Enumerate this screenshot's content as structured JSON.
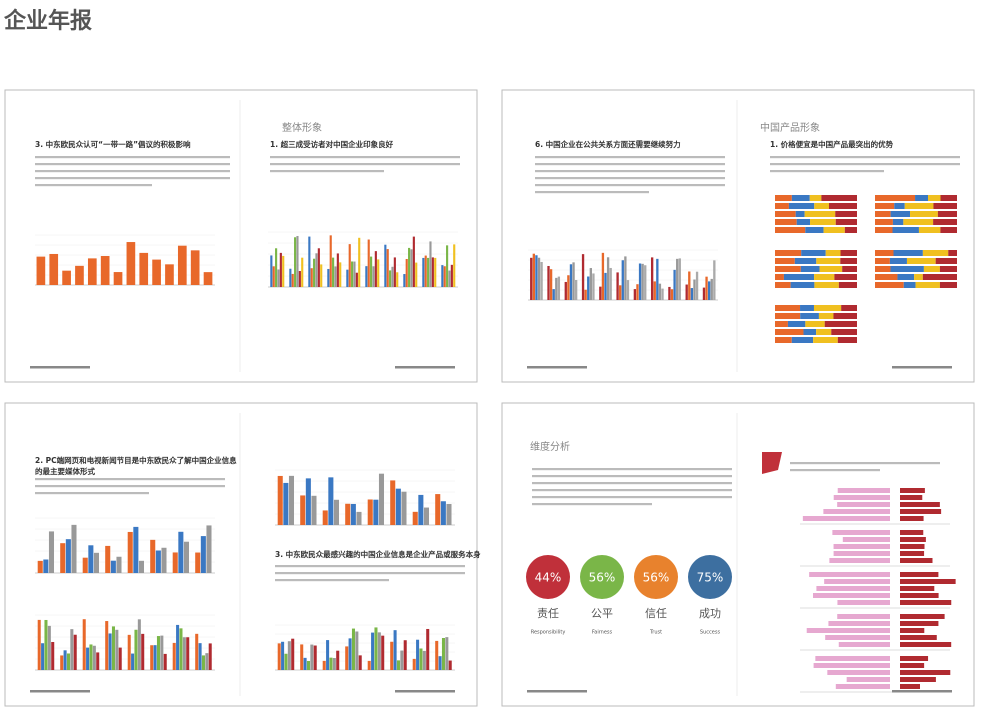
{
  "header": {
    "title": "企业年报"
  },
  "pages": [
    {
      "section": "整体形象",
      "headings": [
        "3. 中东欧民众认可“一带一路”倡议的积极影响",
        "1. 超三成受访者对中国企业印象良好"
      ]
    },
    {
      "section": "中国产品形象",
      "headings": [
        "6. 中国企业在公共关系方面还需要继续努力",
        "1. 价格便宜是中国产品最突出的优势"
      ]
    },
    {
      "headings": [
        [
          "2. PC端网页和电视新闻节目是中东欧民众了解中国企业信息",
          "的最主要媒体形式"
        ],
        "3. 中东欧民众最感兴趣的中国企业信息是企业产品或服务本身"
      ]
    },
    {
      "section": "维度分析",
      "dimensions": [
        {
          "value": "44%",
          "name": "责任",
          "en": "Responsibility",
          "color": "#c0303a"
        },
        {
          "value": "56%",
          "name": "公平",
          "en": "Fairness",
          "color": "#7ab648"
        },
        {
          "value": "56%",
          "name": "信任",
          "en": "Trust",
          "color": "#e8822d"
        },
        {
          "value": "75%",
          "name": "成功",
          "en": "Success",
          "color": "#3d6fa0"
        }
      ]
    }
  ]
}
